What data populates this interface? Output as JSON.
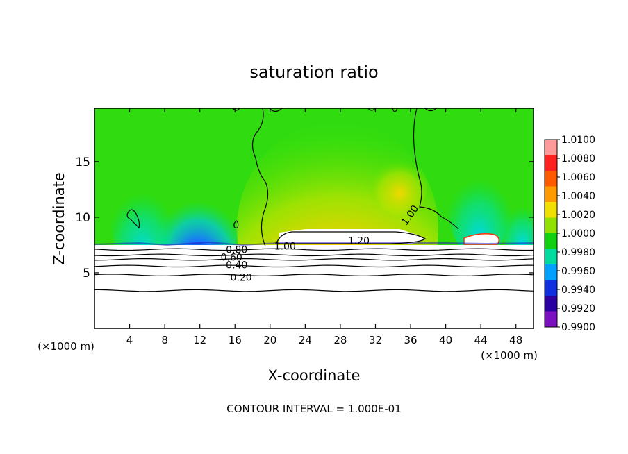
{
  "chart_data": {
    "type": "heatmap",
    "title": "saturation ratio",
    "xlabel": "X-coordinate",
    "ylabel": "Z-coordinate",
    "x_unit": "(×1000 m)",
    "x_unit_right": "(×1000 m)",
    "xlim": [
      0,
      50
    ],
    "ylim": [
      0,
      19.8
    ],
    "x_ticks": [
      4,
      8,
      12,
      16,
      20,
      24,
      28,
      32,
      36,
      40,
      44,
      48
    ],
    "y_ticks": [
      5,
      10,
      15
    ],
    "footer": "CONTOUR INTERVAL = 1.000E-01",
    "colorbar": {
      "levels": [
        "1.0100",
        "1.0080",
        "1.0060",
        "1.0040",
        "1.0020",
        "1.0000",
        "0.9980",
        "0.9960",
        "0.9940",
        "0.9920",
        "0.9900"
      ],
      "colors": [
        "#ff9a9a",
        "#ff2020",
        "#ff5a00",
        "#ff9a00",
        "#f0e000",
        "#90e000",
        "#10d010",
        "#00dca0",
        "#00a0ff",
        "#1030e0",
        "#2a00a0",
        "#7a10c0"
      ]
    },
    "contour_labels": [
      {
        "text": "0.80",
        "x": 16.2,
        "z": 7.1
      },
      {
        "text": "0.60",
        "x": 15.6,
        "z": 6.4
      },
      {
        "text": "0.40",
        "x": 16.2,
        "z": 5.7
      },
      {
        "text": "0.20",
        "x": 16.7,
        "z": 4.6
      },
      {
        "text": "1.00",
        "x": 21.7,
        "z": 7.4
      },
      {
        "text": "1.20",
        "x": 30.1,
        "z": 7.9
      },
      {
        "text": "1.00",
        "x": 35.9,
        "z": 10.2
      }
    ],
    "horizontal_contours_z": [
      7.1,
      6.6,
      6.2,
      5.6,
      4.8,
      3.4
    ]
  }
}
